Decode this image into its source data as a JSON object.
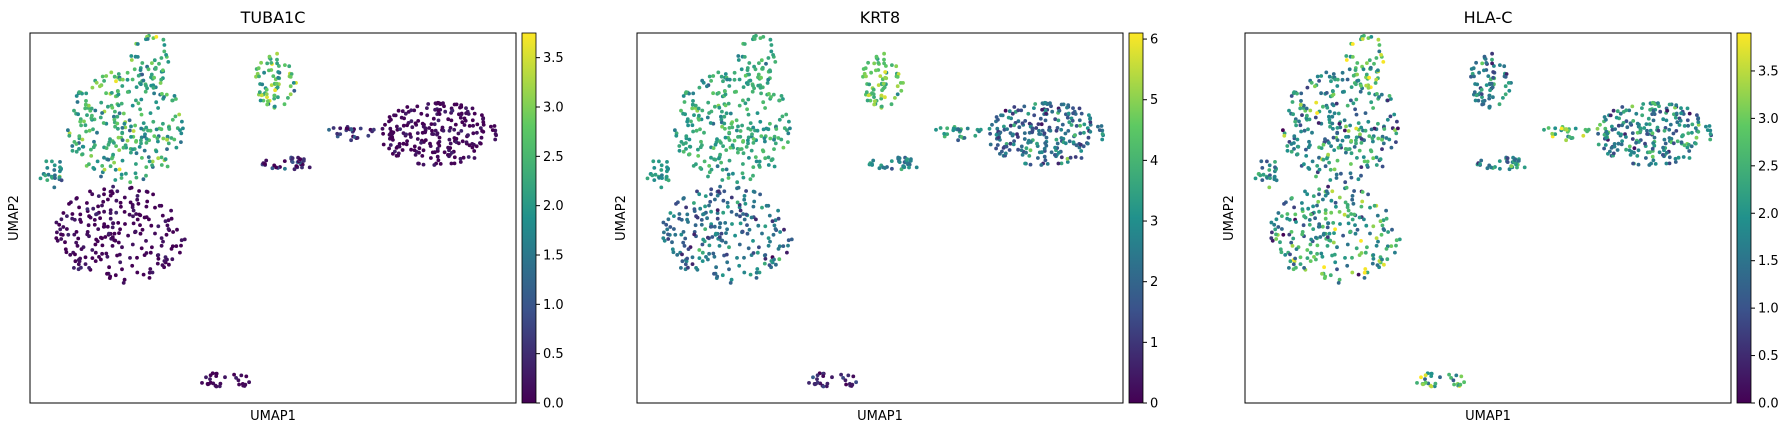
{
  "figure": {
    "colormap": "viridis",
    "colormap_stops": [
      "#440154",
      "#3b528b",
      "#21918c",
      "#5ec962",
      "#fde725"
    ],
    "background": "#ffffff"
  },
  "chart_data": [
    {
      "type": "scatter",
      "title": "TUBA1C",
      "xlabel": "UMAP1",
      "ylabel": "UMAP2",
      "grid": false,
      "colorbar": {
        "min": 0.0,
        "max": 3.75,
        "ticks": [
          "0.0",
          "0.5",
          "1.0",
          "1.5",
          "2.0",
          "2.5",
          "3.0",
          "3.5"
        ],
        "tick_values": [
          0.0,
          0.5,
          1.0,
          1.5,
          2.0,
          2.5,
          3.0,
          3.5
        ]
      },
      "clusters": [
        {
          "name": "upper-left",
          "cx": 1.5,
          "cy": 7.2,
          "rx": 1.6,
          "ry": 1.5,
          "n": 260,
          "mean": 2.3,
          "sd": 0.6
        },
        {
          "name": "top-spike",
          "cx": 2.1,
          "cy": 9.0,
          "rx": 0.5,
          "ry": 0.8,
          "n": 50,
          "mean": 2.2,
          "sd": 0.5
        },
        {
          "name": "lower-left",
          "cx": 1.3,
          "cy": 4.3,
          "rx": 1.7,
          "ry": 1.3,
          "n": 230,
          "mean": 0.05,
          "sd": 0.2
        },
        {
          "name": "left-edge",
          "cx": -0.4,
          "cy": 5.9,
          "rx": 0.35,
          "ry": 0.5,
          "n": 25,
          "mean": 1.7,
          "sd": 0.5
        },
        {
          "name": "upper-mid",
          "cx": 5.3,
          "cy": 8.4,
          "rx": 0.55,
          "ry": 0.75,
          "n": 70,
          "mean": 2.6,
          "sd": 0.6
        },
        {
          "name": "mid-strip",
          "cx": 5.6,
          "cy": 6.2,
          "rx": 0.75,
          "ry": 0.18,
          "n": 35,
          "mean": 0.5,
          "sd": 0.6
        },
        {
          "name": "right-blob",
          "cx": 9.5,
          "cy": 7.0,
          "rx": 1.5,
          "ry": 0.85,
          "n": 230,
          "mean": 0.05,
          "sd": 0.2
        },
        {
          "name": "bridge",
          "cx": 7.2,
          "cy": 7.0,
          "rx": 0.8,
          "ry": 0.2,
          "n": 25,
          "mean": 0.4,
          "sd": 0.5
        },
        {
          "name": "bottom",
          "cx": 4.0,
          "cy": 0.4,
          "rx": 0.7,
          "ry": 0.22,
          "n": 30,
          "mean": 0.05,
          "sd": 0.15
        }
      ]
    },
    {
      "type": "scatter",
      "title": "KRT8",
      "xlabel": "UMAP1",
      "ylabel": "UMAP2",
      "grid": false,
      "colorbar": {
        "min": 0.0,
        "max": 6.1,
        "ticks": [
          "0",
          "1",
          "2",
          "3",
          "4",
          "5",
          "6"
        ],
        "tick_values": [
          0,
          1,
          2,
          3,
          4,
          5,
          6
        ]
      },
      "clusters": [
        {
          "name": "upper-left",
          "cx": 1.5,
          "cy": 7.2,
          "rx": 1.6,
          "ry": 1.5,
          "n": 260,
          "mean": 3.6,
          "sd": 0.6
        },
        {
          "name": "top-spike",
          "cx": 2.1,
          "cy": 9.0,
          "rx": 0.5,
          "ry": 0.8,
          "n": 50,
          "mean": 3.8,
          "sd": 0.6
        },
        {
          "name": "lower-left",
          "cx": 1.3,
          "cy": 4.3,
          "rx": 1.7,
          "ry": 1.3,
          "n": 230,
          "mean": 2.2,
          "sd": 0.8
        },
        {
          "name": "left-edge",
          "cx": -0.4,
          "cy": 5.9,
          "rx": 0.35,
          "ry": 0.5,
          "n": 25,
          "mean": 3.2,
          "sd": 0.6
        },
        {
          "name": "upper-mid",
          "cx": 5.3,
          "cy": 8.4,
          "rx": 0.55,
          "ry": 0.75,
          "n": 70,
          "mean": 4.6,
          "sd": 0.8
        },
        {
          "name": "mid-strip",
          "cx": 5.6,
          "cy": 6.2,
          "rx": 0.75,
          "ry": 0.18,
          "n": 35,
          "mean": 2.7,
          "sd": 0.6
        },
        {
          "name": "right-blob",
          "cx": 9.5,
          "cy": 7.0,
          "rx": 1.5,
          "ry": 0.85,
          "n": 230,
          "mean": 2.2,
          "sd": 0.8
        },
        {
          "name": "bridge",
          "cx": 7.2,
          "cy": 7.0,
          "rx": 0.8,
          "ry": 0.2,
          "n": 25,
          "mean": 3.0,
          "sd": 0.6
        },
        {
          "name": "bottom",
          "cx": 4.0,
          "cy": 0.4,
          "rx": 0.7,
          "ry": 0.22,
          "n": 30,
          "mean": 0.6,
          "sd": 0.6
        }
      ]
    },
    {
      "type": "scatter",
      "title": "HLA-C",
      "xlabel": "UMAP1",
      "ylabel": "UMAP2",
      "grid": false,
      "colorbar": {
        "min": 0.0,
        "max": 3.9,
        "ticks": [
          "0.0",
          "0.5",
          "1.0",
          "1.5",
          "2.0",
          "2.5",
          "3.0",
          "3.5"
        ],
        "tick_values": [
          0.0,
          0.5,
          1.0,
          1.5,
          2.0,
          2.5,
          3.0,
          3.5
        ]
      },
      "clusters": [
        {
          "name": "upper-left",
          "cx": 1.5,
          "cy": 7.2,
          "rx": 1.6,
          "ry": 1.5,
          "n": 260,
          "mean": 1.9,
          "sd": 0.7
        },
        {
          "name": "top-spike",
          "cx": 2.1,
          "cy": 9.0,
          "rx": 0.5,
          "ry": 0.8,
          "n": 50,
          "mean": 2.9,
          "sd": 0.6
        },
        {
          "name": "lower-left",
          "cx": 1.3,
          "cy": 4.3,
          "rx": 1.7,
          "ry": 1.3,
          "n": 230,
          "mean": 2.2,
          "sd": 0.8
        },
        {
          "name": "left-edge",
          "cx": -0.4,
          "cy": 5.9,
          "rx": 0.35,
          "ry": 0.5,
          "n": 25,
          "mean": 1.8,
          "sd": 0.6
        },
        {
          "name": "upper-mid",
          "cx": 5.3,
          "cy": 8.4,
          "rx": 0.55,
          "ry": 0.75,
          "n": 70,
          "mean": 1.7,
          "sd": 0.6
        },
        {
          "name": "mid-strip",
          "cx": 5.6,
          "cy": 6.2,
          "rx": 0.75,
          "ry": 0.18,
          "n": 35,
          "mean": 1.8,
          "sd": 0.5
        },
        {
          "name": "right-blob",
          "cx": 9.5,
          "cy": 7.0,
          "rx": 1.5,
          "ry": 0.85,
          "n": 230,
          "mean": 1.8,
          "sd": 0.7
        },
        {
          "name": "bridge",
          "cx": 7.2,
          "cy": 7.0,
          "rx": 0.8,
          "ry": 0.2,
          "n": 25,
          "mean": 2.6,
          "sd": 0.6
        },
        {
          "name": "bottom",
          "cx": 4.0,
          "cy": 0.4,
          "rx": 0.7,
          "ry": 0.22,
          "n": 30,
          "mean": 2.5,
          "sd": 0.7
        }
      ]
    }
  ]
}
